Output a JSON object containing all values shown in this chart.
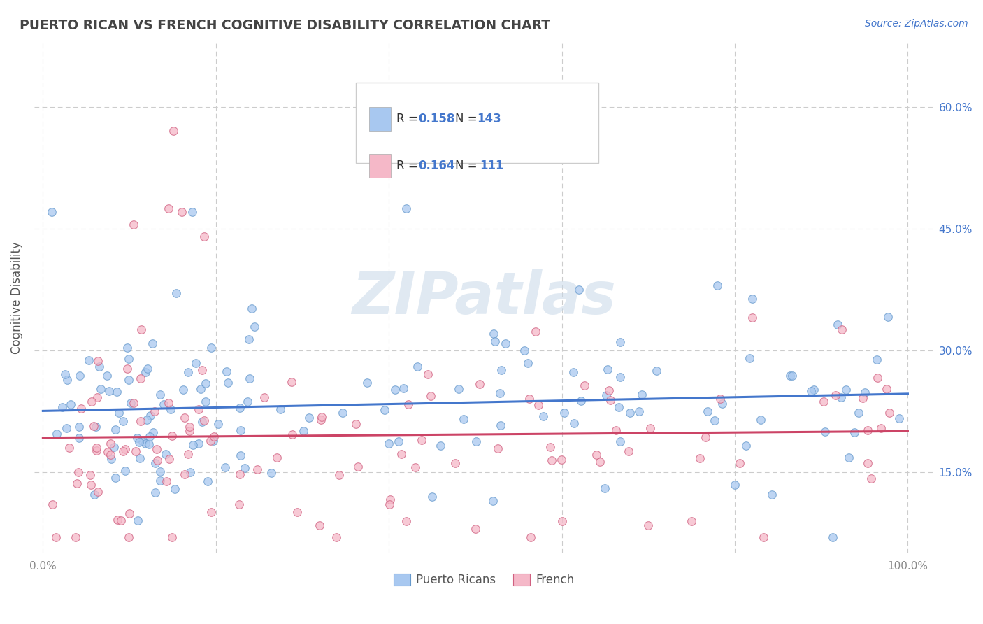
{
  "title": "PUERTO RICAN VS FRENCH COGNITIVE DISABILITY CORRELATION CHART",
  "source": "Source: ZipAtlas.com",
  "ylabel": "Cognitive Disability",
  "ytick_labels": [
    "15.0%",
    "30.0%",
    "45.0%",
    "60.0%"
  ],
  "ytick_values": [
    0.15,
    0.3,
    0.45,
    0.6
  ],
  "xtick_labels": [
    "0.0%",
    "100.0%"
  ],
  "xtick_values": [
    0.0,
    1.0
  ],
  "xlim": [
    -0.01,
    1.03
  ],
  "ylim": [
    0.05,
    0.68
  ],
  "legend_r1": "R = 0.158",
  "legend_n1": "N = 143",
  "legend_r2": "R = 0.164",
  "legend_n2": "N =  111",
  "legend_label1": "Puerto Ricans",
  "legend_label2": "French",
  "color_blue": "#A8C8F0",
  "color_blue_edge": "#6699CC",
  "color_pink": "#F5B8C8",
  "color_pink_edge": "#D06080",
  "color_blue_line": "#4477CC",
  "color_pink_line": "#CC4466",
  "color_title": "#444444",
  "color_accent_blue": "#4477CC",
  "color_grid": "#cccccc",
  "watermark_color": "#C8D8E8",
  "watermark_text": "ZIPatlas"
}
